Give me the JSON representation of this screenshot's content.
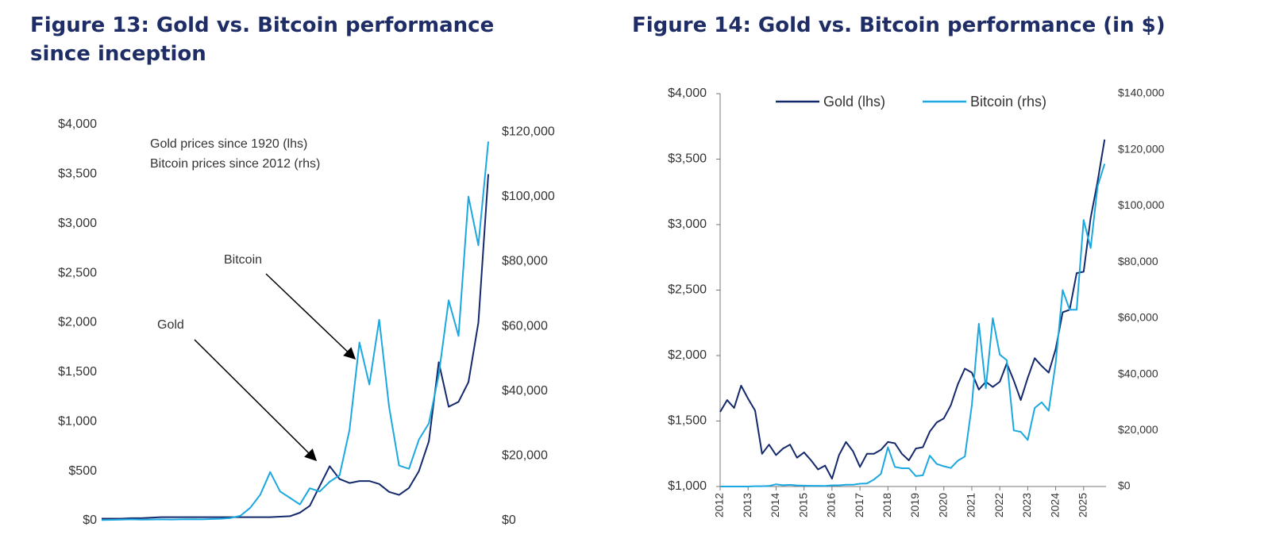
{
  "chart_data": [
    {
      "type": "line",
      "title": "Figure 13: Gold vs. Bitcoin performance since inception",
      "annotations": [
        "Gold prices since 1920 (lhs)",
        "Bitcoin prices since 2012 (rhs)"
      ],
      "series": [
        {
          "name": "Gold",
          "color": "#13296b",
          "values": [
            20,
            20,
            20,
            25,
            25,
            30,
            35,
            35,
            35,
            35,
            35,
            35,
            35,
            35,
            35,
            35,
            35,
            35,
            40,
            45,
            80,
            150,
            350,
            550,
            420,
            380,
            400,
            400,
            370,
            290,
            260,
            330,
            500,
            800,
            1600,
            1150,
            1200,
            1400,
            2000,
            3500
          ]
        },
        {
          "name": "Bitcoin",
          "color": "#1ba8e0",
          "axis": "y2",
          "values": [
            200,
            250,
            300,
            400,
            300,
            350,
            400,
            350,
            400,
            450,
            400,
            500,
            600,
            800,
            1500,
            4000,
            8000,
            15000,
            9000,
            7000,
            5000,
            10000,
            9000,
            12000,
            14000,
            28000,
            55000,
            42000,
            62000,
            35000,
            17000,
            16000,
            25000,
            30000,
            45000,
            68000,
            57000,
            100000,
            85000,
            117000
          ]
        }
      ],
      "ylim": [
        0,
        4000
      ],
      "yticks": [
        {
          "value": 0,
          "label": "$0"
        },
        {
          "value": 500,
          "label": "$500"
        },
        {
          "value": 1000,
          "label": "$1,000"
        },
        {
          "value": 1500,
          "label": "$1,500"
        },
        {
          "value": 2000,
          "label": "$2,000"
        },
        {
          "value": 2500,
          "label": "$2,500"
        },
        {
          "value": 3000,
          "label": "$3,000"
        },
        {
          "value": 3500,
          "label": "$3,500"
        },
        {
          "value": 4000,
          "label": "$4,000"
        }
      ],
      "y2lim": [
        0,
        121000
      ],
      "y2ticks": [
        {
          "value": 0,
          "label": "$0"
        },
        {
          "value": 20000,
          "label": "$20,000"
        },
        {
          "value": 40000,
          "label": "$40,000"
        },
        {
          "value": 60000,
          "label": "$60,000"
        },
        {
          "value": 80000,
          "label": "$80,000"
        },
        {
          "value": 100000,
          "label": "$100,000"
        },
        {
          "value": 120000,
          "label": "$120,000"
        }
      ],
      "grid": false
    },
    {
      "type": "line",
      "title": "Figure 14: Gold vs. Bitcoin performance (in $)",
      "legend": "top",
      "x": [
        2012,
        2012.25,
        2012.5,
        2012.75,
        2013,
        2013.25,
        2013.5,
        2013.75,
        2014,
        2014.25,
        2014.5,
        2014.75,
        2015,
        2015.25,
        2015.5,
        2015.75,
        2016,
        2016.25,
        2016.5,
        2016.75,
        2017,
        2017.25,
        2017.5,
        2017.75,
        2018,
        2018.25,
        2018.5,
        2018.75,
        2019,
        2019.25,
        2019.5,
        2019.75,
        2020,
        2020.25,
        2020.5,
        2020.75,
        2021,
        2021.25,
        2021.5,
        2021.75,
        2022,
        2022.25,
        2022.5,
        2022.75,
        2023,
        2023.25,
        2023.5,
        2023.75,
        2024,
        2024.25,
        2024.5,
        2024.75,
        2025,
        2025.25,
        2025.5,
        2025.75
      ],
      "series": [
        {
          "name": "Gold (lhs)",
          "color": "#13296b",
          "values": [
            1570,
            1660,
            1600,
            1770,
            1670,
            1580,
            1250,
            1320,
            1240,
            1290,
            1320,
            1220,
            1260,
            1200,
            1130,
            1160,
            1060,
            1240,
            1340,
            1270,
            1150,
            1250,
            1250,
            1280,
            1340,
            1330,
            1250,
            1200,
            1290,
            1300,
            1420,
            1490,
            1520,
            1620,
            1780,
            1900,
            1870,
            1740,
            1800,
            1760,
            1800,
            1940,
            1810,
            1660,
            1830,
            1980,
            1920,
            1870,
            2050,
            2330,
            2350,
            2630,
            2640,
            3050,
            3330,
            3650
          ]
        },
        {
          "name": "Bitcoin (rhs)",
          "color": "#1ba8e0",
          "axis": "y2",
          "values": [
            5,
            5,
            7,
            12,
            13,
            100,
            100,
            200,
            800,
            450,
            600,
            400,
            300,
            250,
            250,
            240,
            430,
            420,
            650,
            620,
            1000,
            1100,
            2500,
            4500,
            14000,
            7000,
            6500,
            6500,
            3700,
            4000,
            11000,
            8000,
            7200,
            6600,
            9200,
            10700,
            29000,
            58000,
            35000,
            60000,
            47000,
            45000,
            20000,
            19500,
            16600,
            28000,
            30000,
            27000,
            44000,
            70000,
            63000,
            63000,
            95000,
            85000,
            107000,
            115000
          ]
        }
      ],
      "xlim": [
        2012,
        2025.8
      ],
      "xticks": [
        2012,
        2013,
        2014,
        2015,
        2016,
        2017,
        2018,
        2019,
        2020,
        2021,
        2022,
        2023,
        2024,
        2025
      ],
      "ylim": [
        1000,
        4000
      ],
      "yticks": [
        {
          "value": 1000,
          "label": "$1,000"
        },
        {
          "value": 1500,
          "label": "$1,500"
        },
        {
          "value": 2000,
          "label": "$2,000"
        },
        {
          "value": 2500,
          "label": "$2,500"
        },
        {
          "value": 3000,
          "label": "$3,000"
        },
        {
          "value": 3500,
          "label": "$3,500"
        },
        {
          "value": 4000,
          "label": "$4,000"
        }
      ],
      "y2lim": [
        0,
        140000
      ],
      "y2ticks": [
        {
          "value": 0,
          "label": "$0"
        },
        {
          "value": 20000,
          "label": "$20,000"
        },
        {
          "value": 40000,
          "label": "$40,000"
        },
        {
          "value": 60000,
          "label": "$60,000"
        },
        {
          "value": 80000,
          "label": "$80,000"
        },
        {
          "value": 100000,
          "label": "$100,000"
        },
        {
          "value": 120000,
          "label": "$120,000"
        },
        {
          "value": 140000,
          "label": "$140,000"
        }
      ],
      "grid": false
    }
  ]
}
